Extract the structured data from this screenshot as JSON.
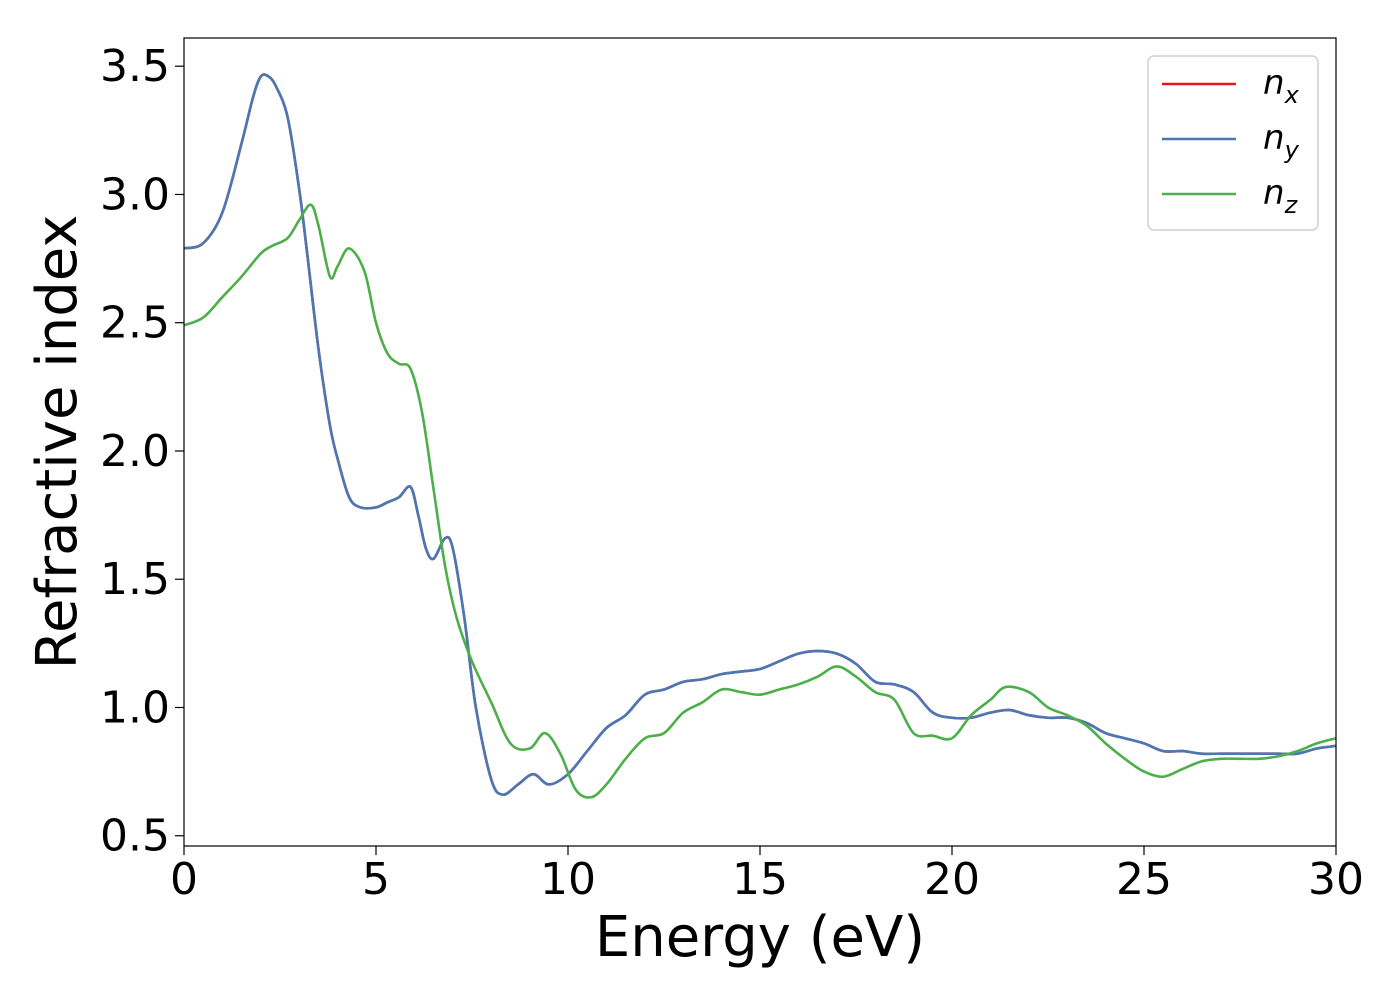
{
  "chart_data": {
    "type": "line",
    "title": "",
    "xlabel": "Energy (eV)",
    "ylabel": "Refractive index",
    "xlim": [
      0,
      30
    ],
    "ylim": [
      0.46,
      3.61
    ],
    "xticks": [
      0,
      5,
      10,
      15,
      20,
      25,
      30
    ],
    "xtick_labels": [
      "0",
      "5",
      "10",
      "15",
      "20",
      "25",
      "30"
    ],
    "yticks": [
      0.5,
      1.0,
      1.5,
      2.0,
      2.5,
      3.0,
      3.5
    ],
    "ytick_labels": [
      "0.5",
      "1.0",
      "1.5",
      "2.0",
      "2.5",
      "3.0",
      "3.5"
    ],
    "grid": false,
    "legend_position": "top-right",
    "legend": [
      {
        "base": "n",
        "sub": "x",
        "color": "#e41a1c"
      },
      {
        "base": "n",
        "sub": "y",
        "color": "#4a78b5"
      },
      {
        "base": "n",
        "sub": "z",
        "color": "#4daf4a"
      }
    ],
    "series": [
      {
        "name": "n_x",
        "color": "#e41a1c",
        "x": [
          0,
          0.5,
          1.0,
          1.5,
          1.8,
          2.0,
          2.2,
          2.4,
          2.7,
          3.0,
          3.2,
          3.5,
          3.8,
          4.0,
          4.3,
          4.6,
          5.0,
          5.3,
          5.6,
          5.9,
          6.1,
          6.3,
          6.5,
          6.8,
          7.0,
          7.3,
          7.6,
          8.0,
          8.3,
          8.7,
          9.1,
          9.5,
          10.0,
          10.5,
          11.0,
          11.5,
          12.0,
          12.5,
          13.0,
          13.5,
          14.0,
          14.5,
          15.0,
          15.5,
          16.0,
          16.5,
          17.0,
          17.5,
          18.0,
          18.5,
          19.0,
          19.5,
          20.0,
          20.5,
          21.0,
          21.5,
          22.0,
          22.5,
          23.0,
          23.5,
          24.0,
          24.5,
          25.0,
          25.5,
          26.0,
          26.5,
          27.0,
          27.5,
          28.0,
          28.5,
          29.0,
          29.5,
          30.0
        ],
        "y": [
          2.79,
          2.81,
          2.93,
          3.2,
          3.38,
          3.46,
          3.46,
          3.42,
          3.3,
          3.02,
          2.78,
          2.4,
          2.1,
          1.97,
          1.82,
          1.78,
          1.78,
          1.8,
          1.82,
          1.86,
          1.75,
          1.62,
          1.58,
          1.66,
          1.62,
          1.35,
          1.0,
          0.72,
          0.66,
          0.7,
          0.74,
          0.7,
          0.74,
          0.83,
          0.92,
          0.97,
          1.05,
          1.07,
          1.1,
          1.11,
          1.13,
          1.14,
          1.15,
          1.18,
          1.21,
          1.22,
          1.21,
          1.17,
          1.1,
          1.09,
          1.06,
          0.98,
          0.96,
          0.96,
          0.98,
          0.99,
          0.97,
          0.96,
          0.96,
          0.94,
          0.9,
          0.88,
          0.86,
          0.83,
          0.83,
          0.82,
          0.82,
          0.82,
          0.82,
          0.82,
          0.82,
          0.84,
          0.85
        ]
      },
      {
        "name": "n_y",
        "color": "#4a78b5",
        "x": [
          0,
          0.5,
          1.0,
          1.5,
          1.8,
          2.0,
          2.2,
          2.4,
          2.7,
          3.0,
          3.2,
          3.5,
          3.8,
          4.0,
          4.3,
          4.6,
          5.0,
          5.3,
          5.6,
          5.9,
          6.1,
          6.3,
          6.5,
          6.8,
          7.0,
          7.3,
          7.6,
          8.0,
          8.3,
          8.7,
          9.1,
          9.5,
          10.0,
          10.5,
          11.0,
          11.5,
          12.0,
          12.5,
          13.0,
          13.5,
          14.0,
          14.5,
          15.0,
          15.5,
          16.0,
          16.5,
          17.0,
          17.5,
          18.0,
          18.5,
          19.0,
          19.5,
          20.0,
          20.5,
          21.0,
          21.5,
          22.0,
          22.5,
          23.0,
          23.5,
          24.0,
          24.5,
          25.0,
          25.5,
          26.0,
          26.5,
          27.0,
          27.5,
          28.0,
          28.5,
          29.0,
          29.5,
          30.0
        ],
        "y": [
          2.79,
          2.81,
          2.93,
          3.2,
          3.38,
          3.46,
          3.46,
          3.42,
          3.3,
          3.02,
          2.78,
          2.4,
          2.1,
          1.97,
          1.82,
          1.78,
          1.78,
          1.8,
          1.82,
          1.86,
          1.75,
          1.62,
          1.58,
          1.66,
          1.62,
          1.35,
          1.0,
          0.72,
          0.66,
          0.7,
          0.74,
          0.7,
          0.74,
          0.83,
          0.92,
          0.97,
          1.05,
          1.07,
          1.1,
          1.11,
          1.13,
          1.14,
          1.15,
          1.18,
          1.21,
          1.22,
          1.21,
          1.17,
          1.1,
          1.09,
          1.06,
          0.98,
          0.96,
          0.96,
          0.98,
          0.99,
          0.97,
          0.96,
          0.96,
          0.94,
          0.9,
          0.88,
          0.86,
          0.83,
          0.83,
          0.82,
          0.82,
          0.82,
          0.82,
          0.82,
          0.82,
          0.84,
          0.85
        ]
      },
      {
        "name": "n_z",
        "color": "#4daf4a",
        "x": [
          0,
          0.5,
          1.0,
          1.5,
          2.0,
          2.3,
          2.7,
          3.0,
          3.3,
          3.5,
          3.8,
          4.0,
          4.3,
          4.7,
          5.0,
          5.3,
          5.6,
          5.9,
          6.2,
          6.5,
          6.8,
          7.1,
          7.5,
          8.0,
          8.5,
          9.0,
          9.4,
          9.8,
          10.2,
          10.6,
          11.0,
          11.5,
          12.0,
          12.5,
          13.0,
          13.5,
          14.0,
          14.5,
          15.0,
          15.5,
          16.0,
          16.5,
          17.0,
          17.5,
          18.0,
          18.5,
          19.0,
          19.5,
          20.0,
          20.5,
          21.0,
          21.4,
          22.0,
          22.5,
          23.0,
          23.5,
          24.0,
          24.5,
          25.0,
          25.5,
          26.0,
          26.5,
          27.0,
          27.5,
          28.0,
          28.5,
          29.0,
          29.5,
          30.0
        ],
        "y": [
          2.49,
          2.52,
          2.6,
          2.68,
          2.77,
          2.8,
          2.83,
          2.9,
          2.96,
          2.88,
          2.68,
          2.72,
          2.79,
          2.7,
          2.5,
          2.38,
          2.34,
          2.32,
          2.15,
          1.85,
          1.55,
          1.35,
          1.18,
          1.02,
          0.86,
          0.84,
          0.9,
          0.82,
          0.68,
          0.65,
          0.7,
          0.8,
          0.88,
          0.9,
          0.98,
          1.02,
          1.07,
          1.06,
          1.05,
          1.07,
          1.09,
          1.12,
          1.16,
          1.12,
          1.06,
          1.03,
          0.9,
          0.89,
          0.88,
          0.97,
          1.03,
          1.08,
          1.06,
          1.0,
          0.97,
          0.93,
          0.86,
          0.8,
          0.75,
          0.73,
          0.76,
          0.79,
          0.8,
          0.8,
          0.8,
          0.81,
          0.83,
          0.86,
          0.88
        ]
      }
    ]
  }
}
